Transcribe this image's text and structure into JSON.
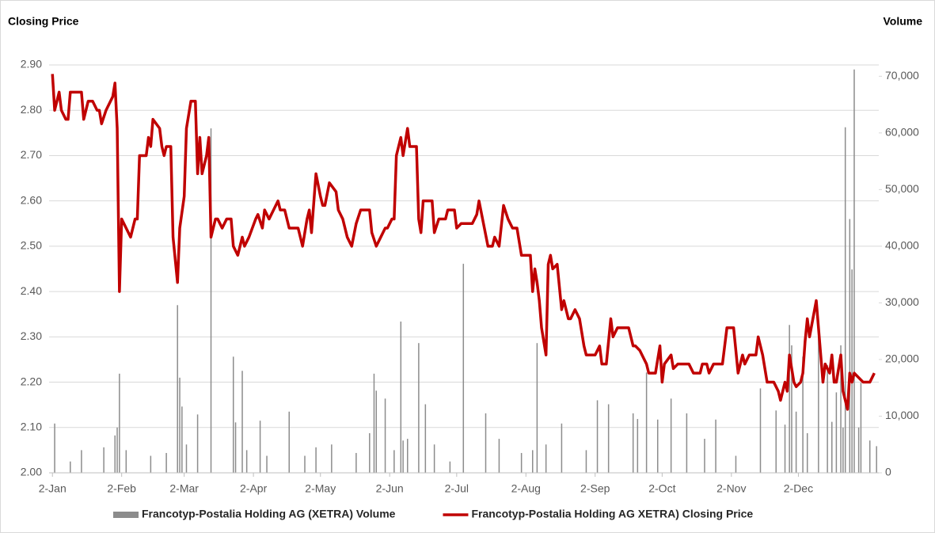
{
  "chart_data": {
    "type": "combo",
    "y_label": "Closing Price",
    "y2_label": "Volume",
    "xlim": [
      -1.5,
      370
    ],
    "xticks": [
      {
        "value": 0,
        "label": "2-Jan"
      },
      {
        "value": 31,
        "label": "2-Feb"
      },
      {
        "value": 59,
        "label": "2-Mar"
      },
      {
        "value": 90,
        "label": "2-Apr"
      },
      {
        "value": 120,
        "label": "2-May"
      },
      {
        "value": 151,
        "label": "2-Jun"
      },
      {
        "value": 181,
        "label": "2-Jul"
      },
      {
        "value": 212,
        "label": "2-Aug"
      },
      {
        "value": 243,
        "label": "2-Sep"
      },
      {
        "value": 273,
        "label": "2-Oct"
      },
      {
        "value": 304,
        "label": "2-Nov"
      },
      {
        "value": 334,
        "label": "2-Dec"
      }
    ],
    "ylim": [
      2.0,
      2.9
    ],
    "yticks": [
      {
        "value": 2.0,
        "label": "2.00"
      },
      {
        "value": 2.1,
        "label": "2.10"
      },
      {
        "value": 2.2,
        "label": "2.20"
      },
      {
        "value": 2.3,
        "label": "2.30"
      },
      {
        "value": 2.4,
        "label": "2.40"
      },
      {
        "value": 2.5,
        "label": "2.50"
      },
      {
        "value": 2.6,
        "label": "2.60"
      },
      {
        "value": 2.7,
        "label": "2.70"
      },
      {
        "value": 2.8,
        "label": "2.80"
      },
      {
        "value": 2.9,
        "label": "2.90"
      }
    ],
    "y2lim": [
      0,
      72000
    ],
    "y2ticks": [
      0,
      {
        "value": 10000,
        "label": "10,000"
      },
      {
        "value": 20000,
        "label": "20,000"
      },
      {
        "value": 30000,
        "label": "30,000"
      },
      {
        "value": 40000,
        "label": "40,000"
      },
      {
        "value": 50000,
        "label": "50,000"
      },
      {
        "value": 60000,
        "label": "60,000"
      },
      {
        "value": 70000,
        "label": "70,000"
      }
    ],
    "grid": true,
    "legend": "bottom",
    "series": [
      {
        "name": "Francotyp-Postalia Holding AG (XETRA) Volume",
        "type": "bar",
        "axis": "y2",
        "color": "#8c8c8c",
        "x": [
          1,
          8,
          13,
          23,
          28,
          29,
          30,
          33,
          44,
          51,
          56,
          57,
          58,
          60,
          65,
          71,
          81,
          82,
          85,
          87,
          93,
          96,
          106,
          113,
          118,
          125,
          136,
          142,
          144,
          145,
          149,
          153,
          156,
          157,
          159,
          164,
          167,
          171,
          178,
          184,
          194,
          200,
          210,
          215,
          217,
          221,
          228,
          239,
          244,
          249,
          260,
          262,
          266,
          271,
          277,
          284,
          292,
          297,
          306,
          317,
          324,
          328,
          330,
          331,
          333,
          336,
          338,
          343,
          347,
          349,
          351,
          353,
          354,
          355,
          357,
          358,
          359,
          361,
          362,
          366,
          369
        ],
        "values": [
          8700,
          2000,
          4000,
          4500,
          6600,
          8000,
          17500,
          4000,
          3000,
          3500,
          29600,
          16800,
          11700,
          5000,
          10300,
          60800,
          20500,
          8900,
          18000,
          4000,
          9200,
          3000,
          10800,
          3000,
          4500,
          5000,
          3500,
          7000,
          17500,
          14500,
          13100,
          4000,
          26700,
          5700,
          6000,
          22900,
          12100,
          5000,
          2000,
          36900,
          10500,
          6000,
          3500,
          4000,
          22900,
          5000,
          8700,
          4000,
          12800,
          12100,
          10500,
          9500,
          17700,
          9400,
          13100,
          10500,
          6000,
          9400,
          3000,
          14900,
          11000,
          8500,
          26100,
          22500,
          10800,
          20500,
          7000,
          24000,
          19000,
          9000,
          14200,
          22500,
          8000,
          61000,
          44800,
          35900,
          71200,
          8000,
          15900,
          5700,
          4700
        ]
      },
      {
        "name": "Francotyp-Postalia Holding AG XETRA) Closing Price",
        "type": "line",
        "color": "#c00000",
        "x": [
          0,
          1,
          3,
          4,
          6,
          7,
          8,
          13,
          14,
          16,
          18,
          20,
          21,
          22,
          24,
          27,
          28,
          29,
          30,
          31,
          33,
          35,
          37,
          38,
          39,
          42,
          43,
          44,
          45,
          48,
          49,
          50,
          51,
          53,
          54,
          56,
          57,
          59,
          60,
          62,
          64,
          65,
          66,
          67,
          69,
          70,
          71,
          73,
          74,
          76,
          78,
          80,
          81,
          83,
          85,
          86,
          88,
          91,
          92,
          94,
          95,
          97,
          99,
          101,
          102,
          104,
          106,
          110,
          112,
          114,
          115,
          116,
          118,
          120,
          121,
          122,
          124,
          127,
          128,
          130,
          132,
          134,
          136,
          138,
          142,
          143,
          145,
          147,
          149,
          150,
          152,
          153,
          154,
          156,
          157,
          159,
          160,
          163,
          164,
          165,
          166,
          170,
          171,
          173,
          176,
          177,
          180,
          181,
          183,
          188,
          190,
          191,
          193,
          195,
          197,
          198,
          200,
          202,
          204,
          206,
          208,
          210,
          214,
          215,
          216,
          217,
          218,
          219,
          221,
          222,
          223,
          224,
          226,
          228,
          229,
          231,
          232,
          234,
          236,
          238,
          239,
          243,
          245,
          246,
          248,
          250,
          251,
          253,
          258,
          260,
          261,
          263,
          264,
          266,
          267,
          270,
          272,
          273,
          274,
          277,
          278,
          280,
          285,
          287,
          290,
          291,
          293,
          294,
          296,
          300,
          302,
          305,
          307,
          309,
          310,
          312,
          315,
          316,
          318,
          320,
          323,
          325,
          326,
          328,
          329,
          330,
          332,
          333,
          335,
          336,
          337,
          338,
          339,
          342,
          343,
          345,
          346,
          348,
          349,
          350,
          351,
          353,
          354,
          356,
          357,
          358,
          359,
          363,
          366,
          368
        ],
        "values": [
          2.88,
          2.8,
          2.84,
          2.8,
          2.78,
          2.78,
          2.84,
          2.84,
          2.78,
          2.82,
          2.82,
          2.8,
          2.8,
          2.77,
          2.8,
          2.83,
          2.86,
          2.76,
          2.4,
          2.56,
          2.54,
          2.52,
          2.56,
          2.56,
          2.7,
          2.7,
          2.74,
          2.72,
          2.78,
          2.76,
          2.72,
          2.7,
          2.72,
          2.72,
          2.52,
          2.42,
          2.54,
          2.61,
          2.76,
          2.82,
          2.82,
          2.66,
          2.74,
          2.66,
          2.7,
          2.74,
          2.52,
          2.56,
          2.56,
          2.54,
          2.56,
          2.56,
          2.5,
          2.48,
          2.52,
          2.5,
          2.52,
          2.56,
          2.57,
          2.54,
          2.58,
          2.56,
          2.58,
          2.6,
          2.58,
          2.58,
          2.54,
          2.54,
          2.5,
          2.56,
          2.58,
          2.53,
          2.66,
          2.61,
          2.59,
          2.59,
          2.64,
          2.62,
          2.58,
          2.56,
          2.52,
          2.5,
          2.55,
          2.58,
          2.58,
          2.53,
          2.5,
          2.52,
          2.54,
          2.54,
          2.56,
          2.56,
          2.7,
          2.74,
          2.7,
          2.76,
          2.72,
          2.72,
          2.56,
          2.53,
          2.6,
          2.6,
          2.53,
          2.56,
          2.56,
          2.58,
          2.58,
          2.54,
          2.55,
          2.55,
          2.57,
          2.6,
          2.55,
          2.5,
          2.5,
          2.52,
          2.5,
          2.59,
          2.56,
          2.54,
          2.54,
          2.48,
          2.48,
          2.4,
          2.45,
          2.42,
          2.38,
          2.32,
          2.26,
          2.46,
          2.48,
          2.45,
          2.46,
          2.36,
          2.38,
          2.34,
          2.34,
          2.36,
          2.34,
          2.28,
          2.26,
          2.26,
          2.28,
          2.24,
          2.24,
          2.34,
          2.3,
          2.32,
          2.32,
          2.28,
          2.28,
          2.27,
          2.26,
          2.24,
          2.22,
          2.22,
          2.28,
          2.2,
          2.24,
          2.26,
          2.23,
          2.24,
          2.24,
          2.22,
          2.22,
          2.24,
          2.24,
          2.22,
          2.24,
          2.24,
          2.32,
          2.32,
          2.22,
          2.26,
          2.24,
          2.26,
          2.26,
          2.3,
          2.26,
          2.2,
          2.2,
          2.18,
          2.16,
          2.2,
          2.18,
          2.26,
          2.2,
          2.19,
          2.2,
          2.22,
          2.29,
          2.34,
          2.3,
          2.38,
          2.32,
          2.2,
          2.24,
          2.22,
          2.26,
          2.2,
          2.2,
          2.26,
          2.18,
          2.14,
          2.22,
          2.2,
          2.22,
          2.2,
          2.2,
          2.22
        ]
      }
    ]
  }
}
